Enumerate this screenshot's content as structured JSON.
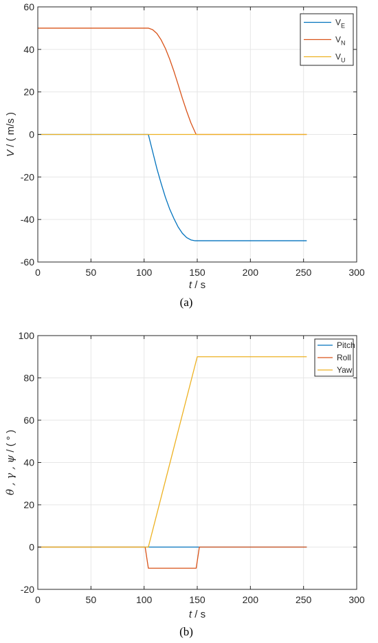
{
  "chart_data": [
    {
      "type": "line",
      "panel_label": "(a)",
      "xlabel": {
        "var": "t",
        "unit": " / s"
      },
      "ylabel": {
        "var": "V",
        "unit": " / ( m/s )"
      },
      "xlim": [
        0,
        300
      ],
      "ylim": [
        -60,
        60
      ],
      "xticks": [
        0,
        50,
        100,
        150,
        200,
        250,
        300
      ],
      "yticks": [
        -60,
        -40,
        -20,
        0,
        20,
        40,
        60
      ],
      "grid": true,
      "legend_position": "top-right",
      "series": [
        {
          "name": "V",
          "sub": "E",
          "color": "#0072BD",
          "x": [
            0,
            104,
            108,
            112,
            116,
            120,
            124,
            128,
            132,
            136,
            140,
            144,
            148,
            152,
            253
          ],
          "y": [
            0,
            0,
            -8,
            -16,
            -23,
            -29.5,
            -35,
            -39.5,
            -43.5,
            -46.5,
            -48.5,
            -49.6,
            -50,
            -50,
            -50
          ]
        },
        {
          "name": "V",
          "sub": "N",
          "color": "#D95319",
          "x": [
            0,
            104,
            108,
            112,
            116,
            120,
            124,
            128,
            132,
            136,
            140,
            144,
            148,
            149,
            253
          ],
          "y": [
            50,
            50,
            49.3,
            47.5,
            44.5,
            40.5,
            35.5,
            29.8,
            23.5,
            17,
            11,
            5.5,
            1,
            0,
            0
          ]
        },
        {
          "name": "V",
          "sub": "U",
          "color": "#EDB120",
          "x": [
            0,
            253
          ],
          "y": [
            0,
            0
          ]
        }
      ]
    },
    {
      "type": "line",
      "panel_label": "(b)",
      "xlabel": {
        "var": "t",
        "unit": " / s"
      },
      "ylabel": {
        "var": "θ , γ , ψ",
        "unit": " / ( ° )"
      },
      "xlim": [
        0,
        300
      ],
      "ylim": [
        -20,
        100
      ],
      "xticks": [
        0,
        50,
        100,
        150,
        200,
        250,
        300
      ],
      "yticks": [
        -20,
        0,
        20,
        40,
        60,
        80,
        100
      ],
      "grid": true,
      "legend_position": "top-right",
      "series": [
        {
          "name": "Pitch",
          "sub": "",
          "color": "#0072BD",
          "x": [
            0,
            253
          ],
          "y": [
            0,
            0
          ]
        },
        {
          "name": "Roll",
          "sub": "",
          "color": "#D95319",
          "x": [
            0,
            101,
            104,
            149,
            152,
            253
          ],
          "y": [
            0,
            0,
            -10,
            -10,
            0,
            0
          ]
        },
        {
          "name": "Yaw",
          "sub": "",
          "color": "#EDB120",
          "x": [
            0,
            104,
            150,
            253
          ],
          "y": [
            0,
            0,
            90,
            90
          ]
        }
      ]
    }
  ]
}
